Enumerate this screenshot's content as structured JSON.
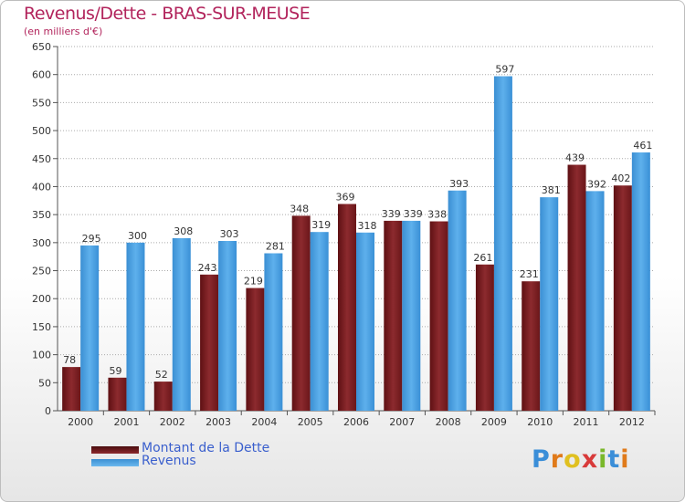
{
  "header": {
    "title": "Revenus/Dette - BRAS-SUR-MEUSE",
    "subtitle": "(en milliers d'€)"
  },
  "legend": [
    {
      "label": "Montant de la Dette",
      "color": "#7a1e22"
    },
    {
      "label": "Revenus",
      "color": "#4a9fe0"
    }
  ],
  "logo": {
    "letters": [
      "P",
      "r",
      "o",
      "x",
      "i",
      "t",
      "i"
    ],
    "colors": [
      "#3a8ed8",
      "#e07a1a",
      "#e0c020",
      "#d83a3a",
      "#7ab82a",
      "#3a8ed8",
      "#e07a1a"
    ]
  },
  "chart_data": {
    "type": "bar",
    "title": "Revenus/Dette - BRAS-SUR-MEUSE",
    "subtitle": "(en milliers d'€)",
    "categories": [
      "2000",
      "2001",
      "2002",
      "2003",
      "2004",
      "2005",
      "2006",
      "2007",
      "2008",
      "2009",
      "2010",
      "2011",
      "2012"
    ],
    "series": [
      {
        "name": "Montant de la Dette",
        "color": "#7a1e22",
        "values": [
          78,
          59,
          52,
          243,
          219,
          348,
          369,
          339,
          338,
          261,
          231,
          439,
          402
        ]
      },
      {
        "name": "Revenus",
        "color": "#4a9fe0",
        "values": [
          295,
          300,
          308,
          303,
          281,
          319,
          318,
          339,
          393,
          597,
          381,
          392,
          461
        ]
      }
    ],
    "yticks": [
      0,
      50,
      100,
      150,
      200,
      250,
      300,
      350,
      400,
      450,
      500,
      550,
      600,
      650
    ],
    "ylim": [
      0,
      650
    ],
    "grid": true,
    "legend_position": "bottom-left"
  }
}
